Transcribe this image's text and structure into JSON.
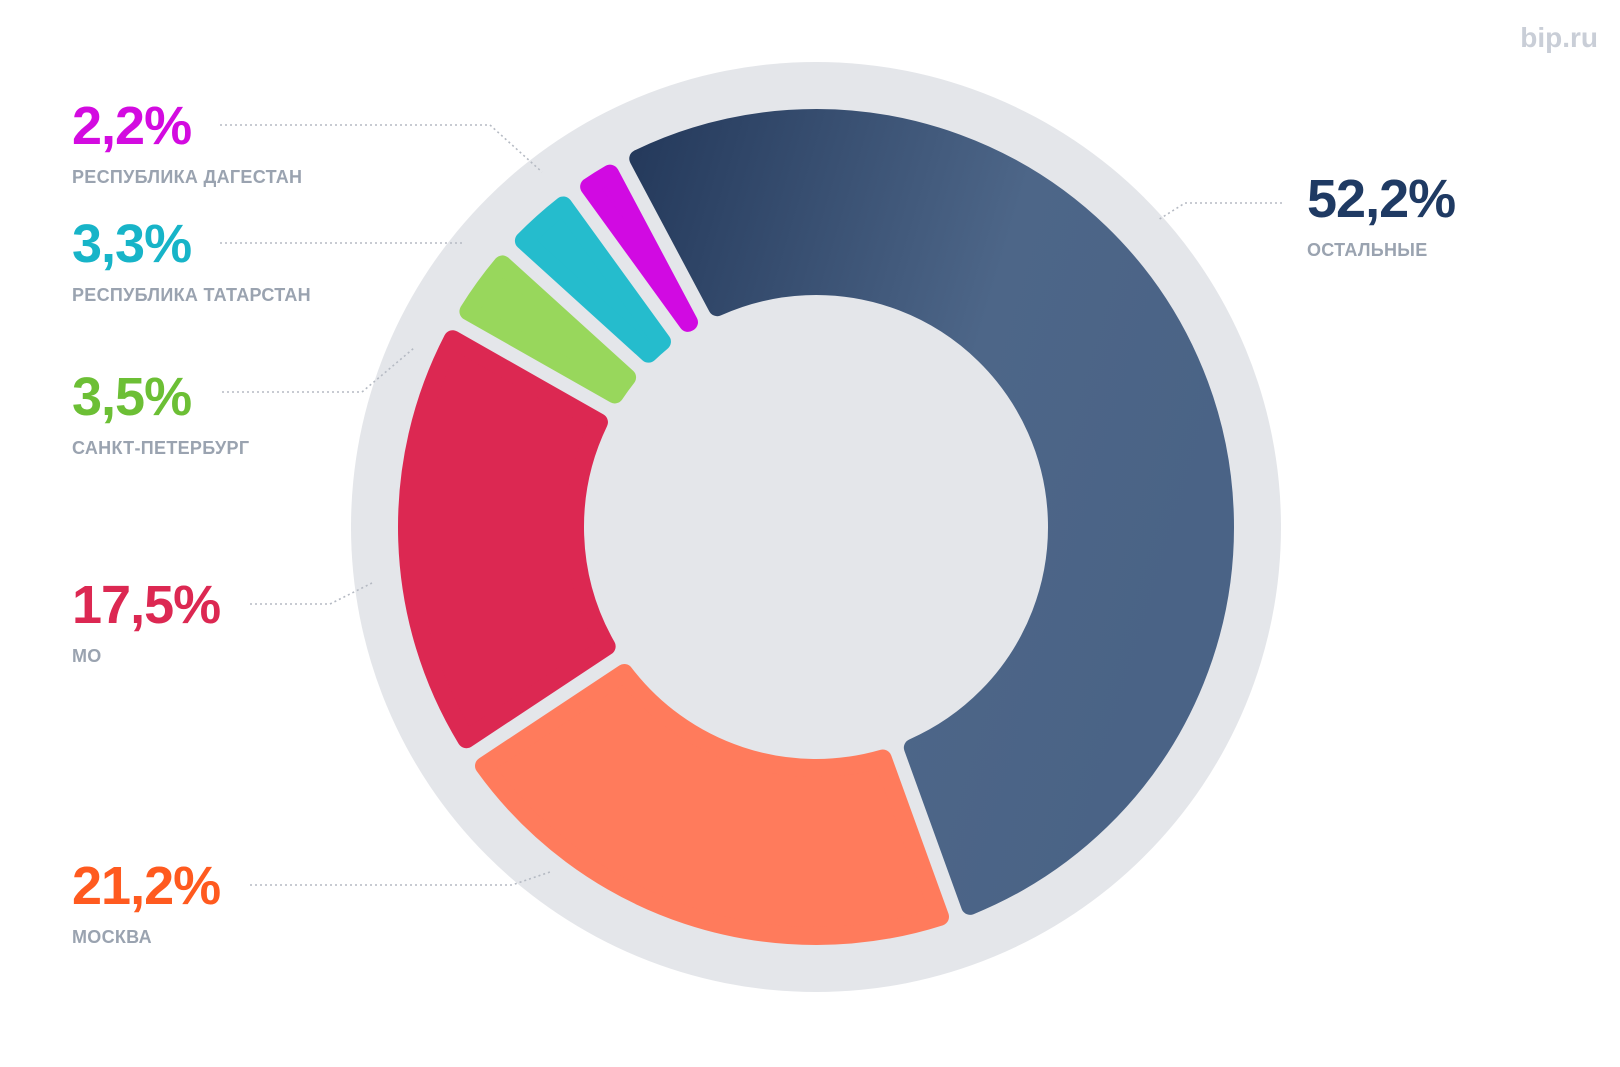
{
  "watermark": "bip.ru",
  "chart_data": {
    "type": "pie",
    "variant": "donut",
    "start_angle_deg": -28,
    "direction": "clockwise",
    "slices": [
      {
        "label": "ОСТАЛЬНЫЕ",
        "value": 52.2,
        "text": "52,2%",
        "color": "#3f5a7e",
        "color_dark": "#24395b",
        "label_color": "#1f3a63"
      },
      {
        "label": "МОСКВА",
        "value": 21.2,
        "text": "21,2%",
        "color": "#ff7b5c",
        "label_color": "#ff5a1f"
      },
      {
        "label": "МО",
        "value": 17.5,
        "text": "17,5%",
        "color": "#dc2852",
        "label_color": "#dc2852"
      },
      {
        "label": "САНКТ-ПЕТЕРБУРГ",
        "value": 3.5,
        "text": "3,5%",
        "color": "#98d75c",
        "label_color": "#6cbf35"
      },
      {
        "label": "РЕСПУБЛИКА ТАТАРСТАН",
        "value": 3.3,
        "text": "3,3%",
        "color": "#25bccd",
        "label_color": "#17b4c8"
      },
      {
        "label": "РЕСПУБЛИКА ДАГЕСТАН",
        "value": 2.2,
        "text": "2,2%",
        "color": "#d10ae2",
        "label_color": "#d30be0"
      }
    ]
  }
}
